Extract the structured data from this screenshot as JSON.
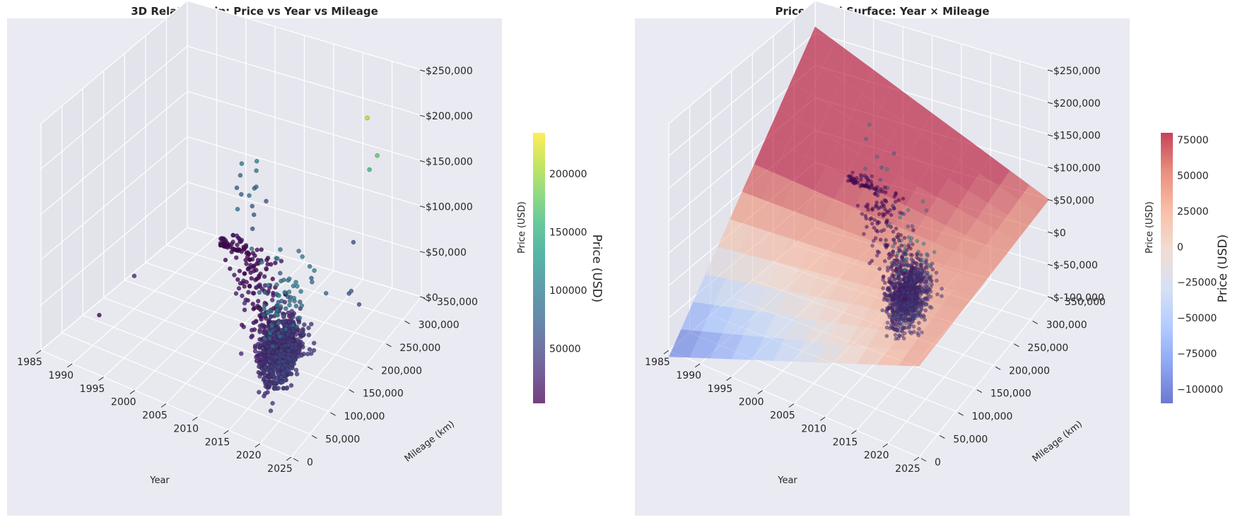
{
  "chart_data": [
    {
      "type": "scatter3d",
      "title": "3D Relationship: Price vs Year vs Mileage",
      "xlabel": "Year",
      "ylabel": "Mileage (km)",
      "zlabel": "Price (USD)",
      "x_ticks": [
        "1985",
        "1990",
        "1995",
        "2000",
        "2005",
        "2010",
        "2015",
        "2020",
        "2025"
      ],
      "y_ticks": [
        "0",
        "50,000",
        "100,000",
        "150,000",
        "200,000",
        "250,000",
        "300,000",
        "350,000"
      ],
      "z_ticks": [
        "$0",
        "$50,000",
        "$100,000",
        "$150,000",
        "$200,000",
        "$250,000"
      ],
      "xlim": [
        1985,
        2025
      ],
      "ylim": [
        0,
        350000
      ],
      "zlim": [
        0,
        250000
      ],
      "colormap": "viridis",
      "colorbar": {
        "label": "Price (USD)",
        "ticks": [
          "50000",
          "100000",
          "150000",
          "200000"
        ],
        "range": [
          3000,
          235000
        ]
      },
      "points": [
        [
          1989,
          165000,
          28000
        ],
        [
          1998,
          345000,
          2500
        ],
        [
          2002,
          280000,
          8000
        ],
        [
          1987,
          110000,
          1500
        ],
        [
          1995,
          300000,
          4000
        ],
        [
          2016,
          310000,
          62000
        ],
        [
          2019,
          300000,
          210000
        ],
        [
          2020,
          290000,
          160000
        ],
        [
          2021,
          295000,
          175000
        ],
        [
          2018,
          170000,
          90000
        ],
        [
          2020,
          175000,
          80000
        ],
        [
          2019,
          160000,
          110000
        ],
        [
          2017,
          180000,
          100000
        ],
        [
          2022,
          210000,
          70000
        ],
        [
          2021,
          220000,
          60000
        ],
        [
          2023,
          215000,
          55000
        ],
        [
          2016,
          200000,
          75000
        ]
      ],
      "cluster": {
        "year": [
          2008,
          2025
        ],
        "mileage": [
          0,
          250000
        ],
        "price": [
          2000,
          80000
        ],
        "count": 1200
      }
    },
    {
      "type": "surface3d",
      "title": "Price Trend Surface: Year × Mileage",
      "xlabel": "Year",
      "ylabel": "Mileage (km)",
      "zlabel": "Price (USD)",
      "x_ticks": [
        "1985",
        "1990",
        "1995",
        "2000",
        "2005",
        "2010",
        "2015",
        "2020",
        "2025"
      ],
      "y_ticks": [
        "0",
        "50,000",
        "100,000",
        "150,000",
        "200,000",
        "250,000",
        "300,000",
        "350,000"
      ],
      "z_ticks": [
        "$-100,000",
        "$-50,000",
        "$0",
        "$50,000",
        "$100,000",
        "$150,000",
        "$200,000",
        "$250,000"
      ],
      "xlim": [
        1985,
        2025
      ],
      "ylim": [
        0,
        350000
      ],
      "zlim": [
        -100000,
        250000
      ],
      "colormap": "coolwarm",
      "colorbar": {
        "label": "Price (USD)",
        "ticks": [
          "75000",
          "50000",
          "25000",
          "0",
          "−25000",
          "−50000",
          "−75000",
          "−100000"
        ],
        "range": [
          -110000,
          80000
        ]
      },
      "surface": {
        "corners": {
          "year1985_mileage0": -110000,
          "year2025_mileage0": 40000,
          "year1985_mileage350000": 210000,
          "year2025_mileage350000": 50000
        }
      },
      "colors": {
        "pane": "#eaeaf2",
        "grid": "#ffffff",
        "text": "#262626"
      }
    }
  ]
}
